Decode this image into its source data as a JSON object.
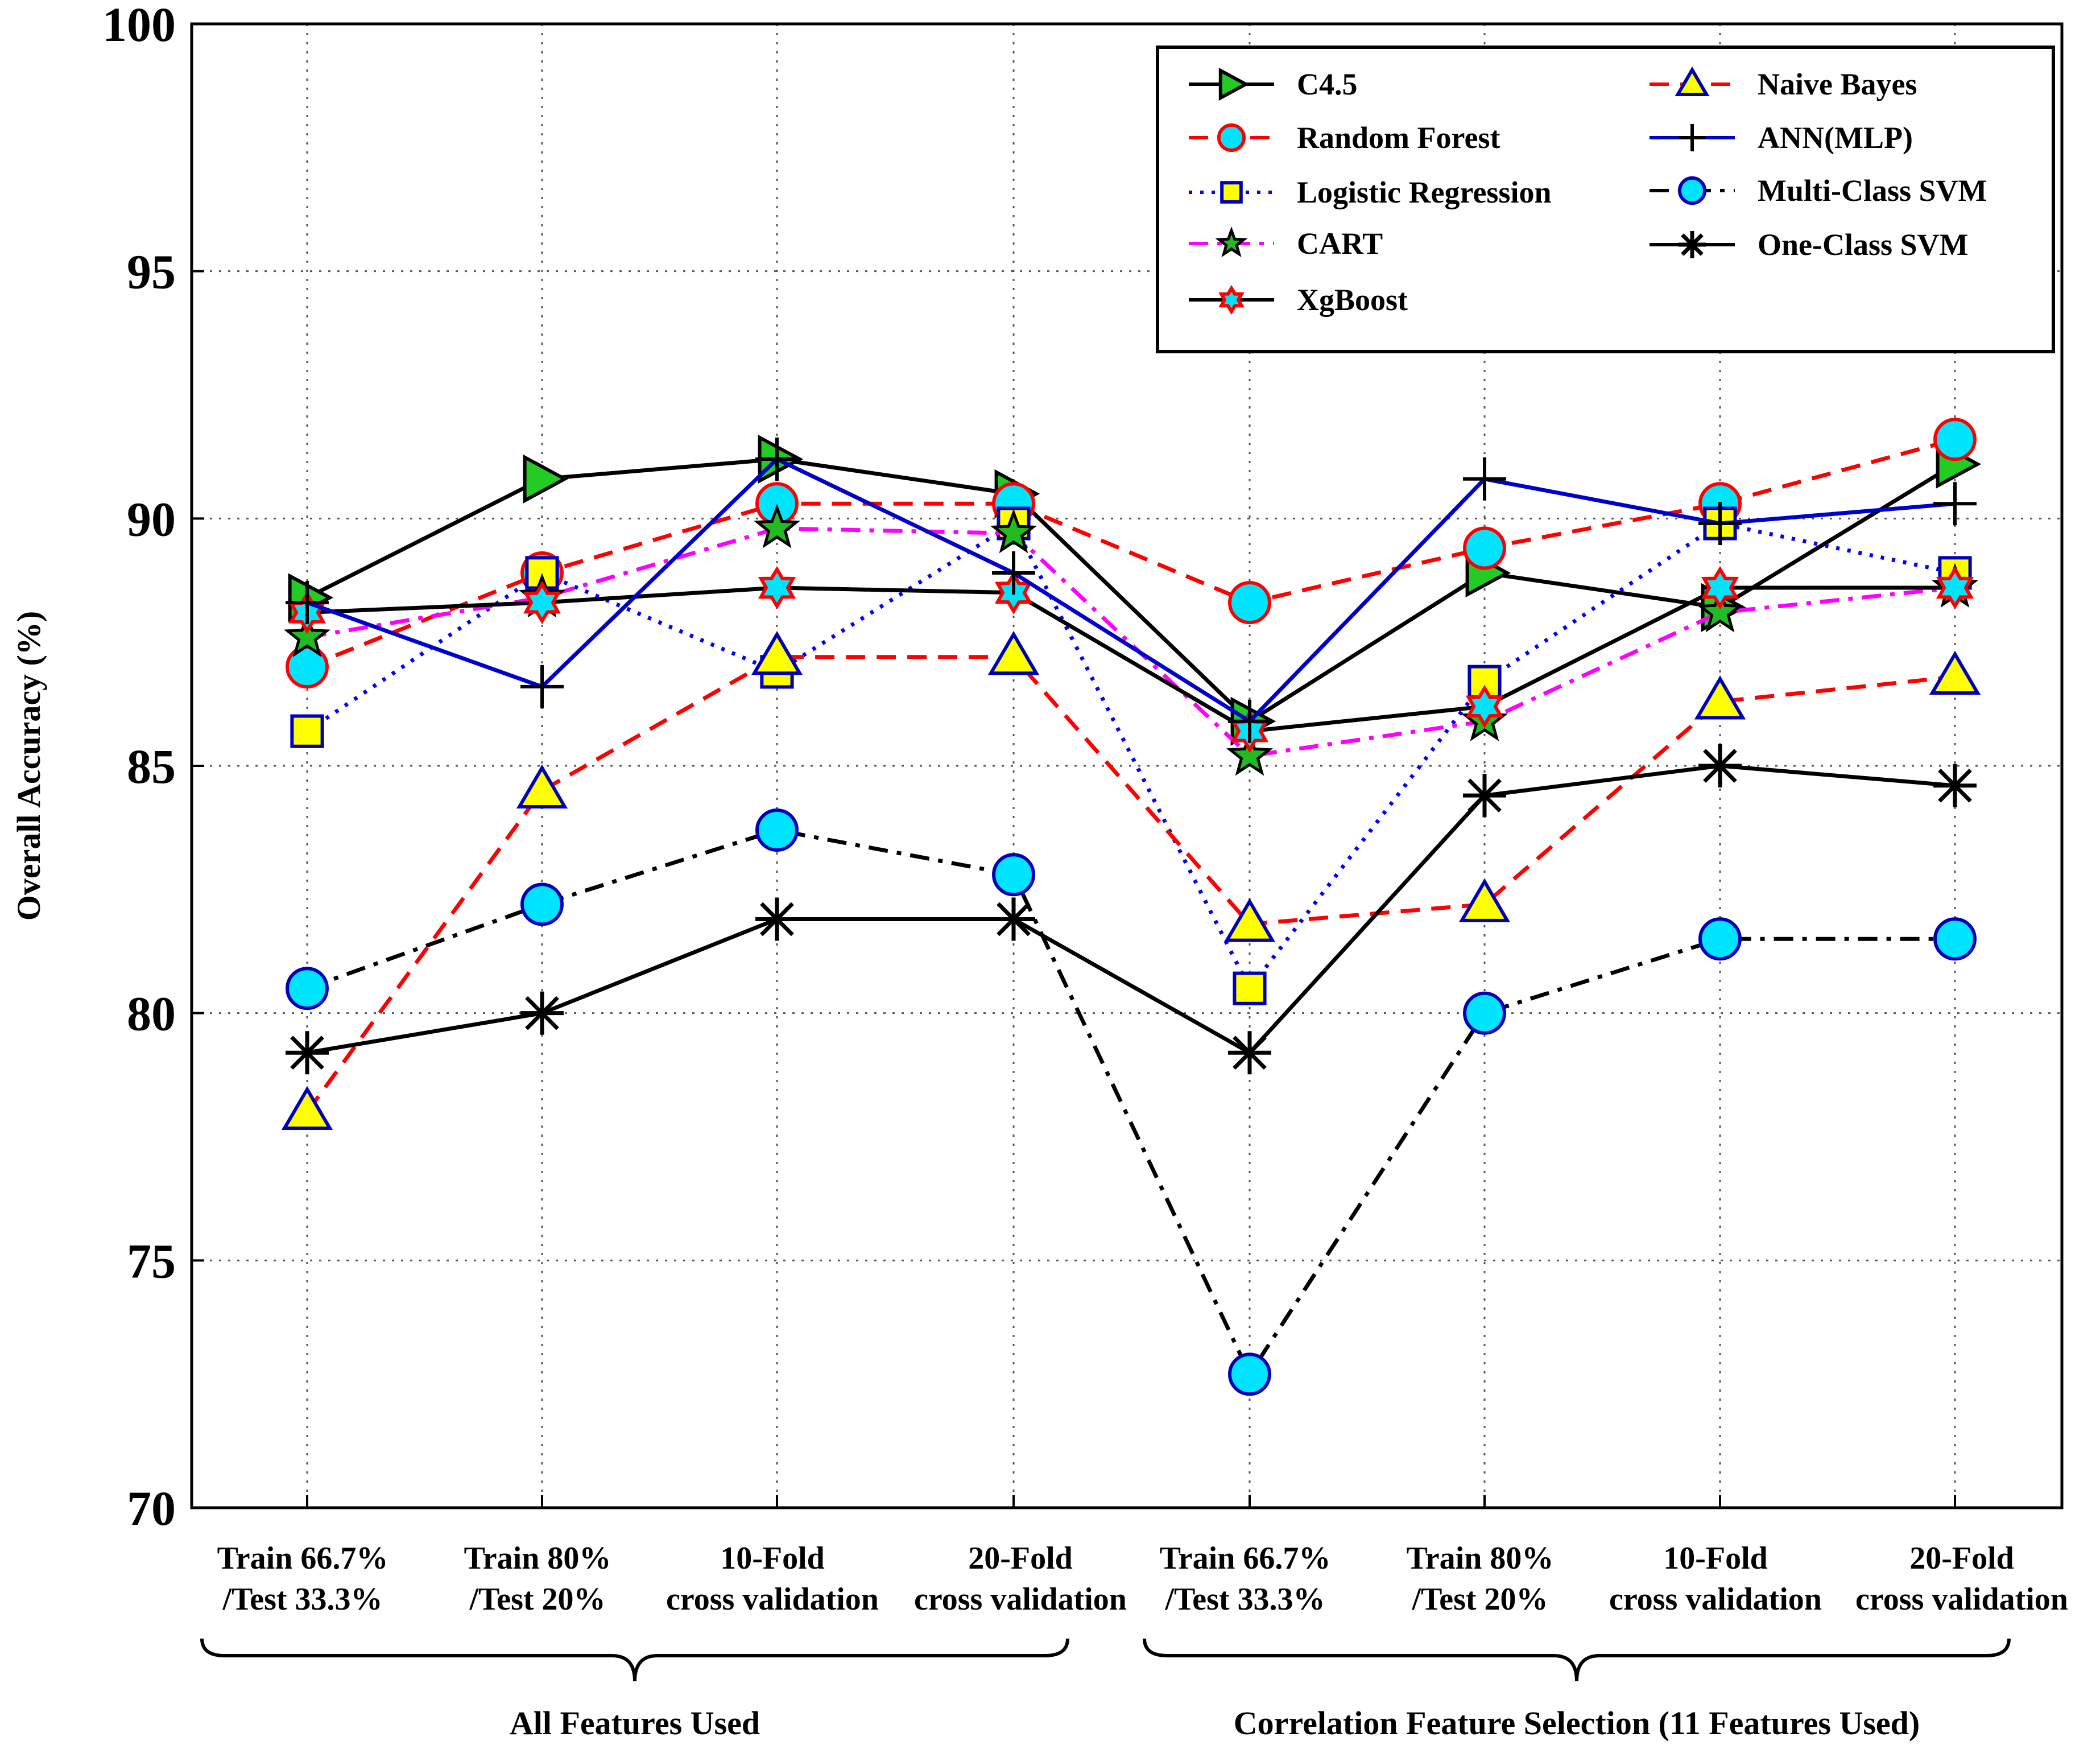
{
  "chart_data": {
    "type": "line",
    "ylabel": "Overall Accuracy (%)",
    "ylim": [
      70,
      100
    ],
    "yticks": [
      70,
      75,
      80,
      85,
      90,
      95,
      100
    ],
    "grid": true,
    "legend_position": "top-right",
    "categories": [
      [
        "Train 66.7%",
        "/Test 33.3%"
      ],
      [
        "Train 80%",
        "/Test 20%"
      ],
      [
        "10-Fold",
        "cross validation"
      ],
      [
        "20-Fold",
        "cross validation"
      ],
      [
        "Train 66.7%",
        "/Test 33.3%"
      ],
      [
        "Train 80%",
        "/Test 20%"
      ],
      [
        "10-Fold",
        "cross validation"
      ],
      [
        "20-Fold",
        "cross validation"
      ]
    ],
    "groups": [
      {
        "label": "All Features Used",
        "from": 0,
        "to": 3
      },
      {
        "label": "Correlation Feature Selection (11 Features Used)",
        "from": 4,
        "to": 7
      }
    ],
    "series": [
      {
        "name": "C4.5",
        "values": [
          88.4,
          90.8,
          91.2,
          90.5,
          85.9,
          88.9,
          88.2,
          91.1
        ],
        "color": "#000000",
        "dash": "solid",
        "marker": "triangle-right",
        "markerFill": "#22cc22",
        "markerStroke": "#000000"
      },
      {
        "name": "Random Forest",
        "values": [
          87.0,
          88.9,
          90.3,
          90.3,
          88.3,
          89.4,
          90.3,
          91.6
        ],
        "color": "#ff0000",
        "dash": "dashed",
        "marker": "circle",
        "markerFill": "#00e5ff",
        "markerStroke": "#ff0000"
      },
      {
        "name": "Logistic Regression",
        "values": [
          85.7,
          88.9,
          86.9,
          89.9,
          80.5,
          86.7,
          89.9,
          88.9
        ],
        "color": "#0000ff",
        "dash": "dotted",
        "marker": "square",
        "markerFill": "#ffff00",
        "markerStroke": "#0000bb"
      },
      {
        "name": "CART",
        "values": [
          87.6,
          88.4,
          89.8,
          89.7,
          85.2,
          85.9,
          88.1,
          88.6
        ],
        "color": "#ff00ff",
        "dash": "dashdot",
        "marker": "star5",
        "markerFill": "#22bb22",
        "markerStroke": "#000000"
      },
      {
        "name": "XgBoost",
        "values": [
          88.1,
          88.3,
          88.6,
          88.5,
          85.7,
          86.2,
          88.6,
          88.6
        ],
        "color": "#000000",
        "dash": "solid",
        "marker": "star6",
        "markerFill": "#00e5ff",
        "markerStroke": "#ff0000"
      },
      {
        "name": "Naive Bayes",
        "values": [
          78.0,
          84.5,
          87.2,
          87.2,
          81.8,
          82.2,
          86.3,
          86.8
        ],
        "color": "#ff0000",
        "dash": "dashed",
        "marker": "triangle-up",
        "markerFill": "#ffff00",
        "markerStroke": "#0000bb"
      },
      {
        "name": "ANN(MLP)",
        "values": [
          88.3,
          86.6,
          91.2,
          88.9,
          85.9,
          90.8,
          89.9,
          90.3
        ],
        "color": "#0000cc",
        "dash": "solid",
        "marker": "plus",
        "markerFill": "none",
        "markerStroke": "#000000"
      },
      {
        "name": "Multi-Class SVM",
        "values": [
          80.5,
          82.2,
          83.7,
          82.8,
          72.7,
          80.0,
          81.5,
          81.5
        ],
        "color": "#000000",
        "dash": "dashdot",
        "marker": "circle",
        "markerFill": "#00e5ff",
        "markerStroke": "#0000bb"
      },
      {
        "name": "One-Class SVM",
        "values": [
          79.2,
          80.0,
          81.9,
          81.9,
          79.2,
          84.4,
          85.0,
          84.6
        ],
        "color": "#000000",
        "dash": "solid",
        "marker": "asterisk",
        "markerFill": "none",
        "markerStroke": "#000000"
      }
    ]
  }
}
